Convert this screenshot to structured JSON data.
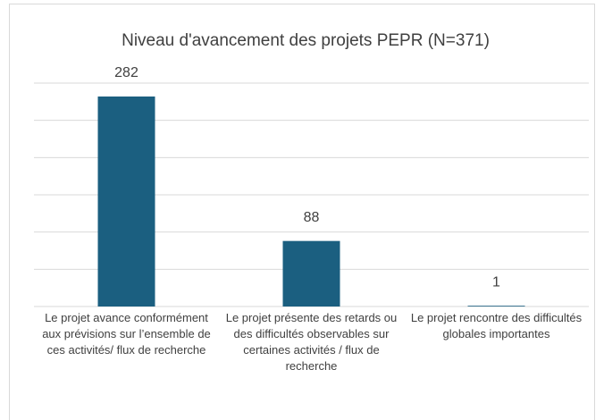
{
  "chart_data": {
    "type": "bar",
    "title": "Niveau d'avancement des projets PEPR (N=371)",
    "categories": [
      "Le projet avance conformément aux prévisions sur l’ensemble de ces activités/ flux de recherche",
      "Le projet présente des retards ou des difficultés observables sur certaines activités / flux de recherche",
      "Le projet rencontre des difficultés globales importantes"
    ],
    "values": [
      282,
      88,
      1
    ],
    "color": "#1b5f80",
    "ylim": [
      0,
      300
    ],
    "yticks": [
      0,
      50,
      100,
      150,
      200,
      250,
      300
    ],
    "grid": true
  }
}
